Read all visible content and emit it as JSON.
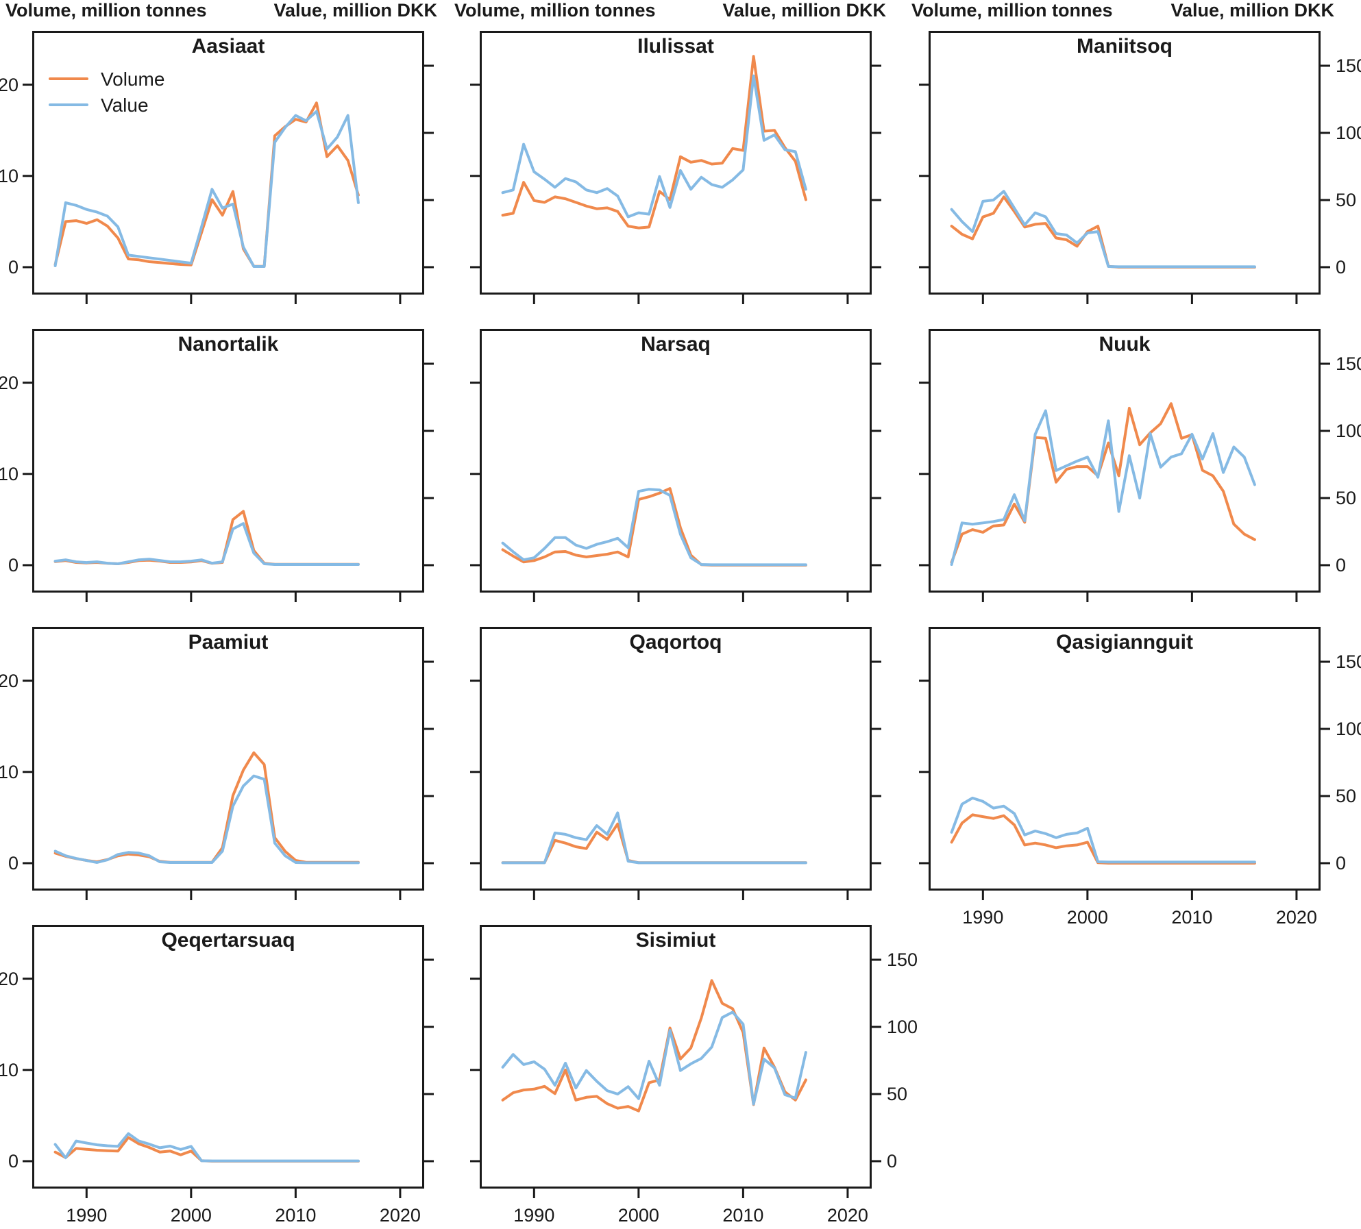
{
  "axis_titles": {
    "volume": "Volume, million tonnes",
    "value": "Value, million DKK"
  },
  "legend": {
    "volume": "Volume",
    "value": "Value"
  },
  "colors": {
    "volume": "#F0894C",
    "value": "#85BAE4",
    "axis": "#1A1A1A"
  },
  "axes": {
    "x_ticks": [
      1990,
      2000,
      2010,
      2020
    ],
    "left_ticks": [
      0,
      10,
      20
    ],
    "right_ticks": [
      0,
      50,
      100,
      150
    ],
    "x_range": [
      1984.8,
      2022.3
    ],
    "left_range": [
      0,
      25.9
    ],
    "right_range": [
      0,
      176
    ],
    "years_start": 1987,
    "years_end": 2016,
    "left_axis_label_columns": "first column only",
    "right_axis_label_panels": "rightmost panel of each row",
    "x_axis_label_panels": "bottom panel of each column"
  },
  "chart_data": {
    "type": "line",
    "x_unit": "year",
    "series_units": {
      "volume": "million tonnes (left axis)",
      "value": "million DKK (right axis)"
    },
    "panels": [
      {
        "title": "Aasiaat",
        "volume": [
          0.3,
          5,
          5.1,
          4.8,
          5.2,
          4.5,
          3.2,
          0.9,
          0.8,
          0.6,
          0.5,
          0.4,
          0.3,
          0.25,
          3.8,
          7.4,
          5.7,
          8.3,
          2,
          0.1,
          0.1,
          14.4,
          15.4,
          16.2,
          15.9,
          18,
          12.1,
          13.3,
          11.7,
          7.9
        ],
        "value": [
          1,
          48,
          46,
          43,
          41,
          38,
          30,
          9,
          8,
          7,
          6,
          5,
          4,
          3,
          30,
          58,
          44,
          47,
          15,
          0.5,
          0.5,
          93,
          104,
          113,
          109,
          116,
          88,
          97,
          113,
          48
        ]
      },
      {
        "title": "Ilulissat",
        "volume": [
          5.7,
          5.9,
          9.3,
          7.3,
          7.1,
          7.7,
          7.5,
          7.1,
          6.7,
          6.4,
          6.5,
          6.1,
          4.5,
          4.3,
          4.4,
          8.3,
          7.4,
          12.1,
          11.5,
          11.7,
          11.3,
          11.4,
          13,
          12.8,
          23.1,
          14.9,
          15,
          13.1,
          11.6,
          7.4
        ],
        "value": [
          55.5,
          57.5,
          91.5,
          71,
          65.5,
          59.5,
          66,
          63.5,
          57.5,
          55.5,
          58.5,
          53,
          37.5,
          40.5,
          39.5,
          67.5,
          44.5,
          72,
          58,
          67,
          61.5,
          59.5,
          65,
          72.5,
          142.5,
          94.5,
          98.5,
          87.5,
          86,
          58
        ]
      },
      {
        "title": "Maniitsoq",
        "volume": [
          4.5,
          3.6,
          3.1,
          5.5,
          5.9,
          7.7,
          6.1,
          4.4,
          4.7,
          4.8,
          3.2,
          3,
          2.3,
          3.9,
          4.5,
          0.1,
          0,
          0,
          0,
          0,
          0,
          0,
          0,
          0,
          0,
          0,
          0,
          0,
          0,
          0
        ],
        "value": [
          43,
          34,
          26.5,
          49,
          50,
          56.5,
          44,
          31.5,
          40.5,
          37.5,
          25,
          24,
          18,
          25.5,
          26.5,
          0.5,
          0.3,
          0.3,
          0.3,
          0.3,
          0.3,
          0.3,
          0.3,
          0.3,
          0.3,
          0.3,
          0.3,
          0.3,
          0.3,
          0.3
        ]
      },
      {
        "title": "Nanortalik",
        "volume": [
          0.4,
          0.5,
          0.3,
          0.25,
          0.3,
          0.2,
          0.15,
          0.3,
          0.5,
          0.55,
          0.45,
          0.3,
          0.3,
          0.35,
          0.5,
          0.2,
          0.3,
          5,
          5.9,
          1.6,
          0.2,
          0.1,
          0.1,
          0.1,
          0.1,
          0.1,
          0.1,
          0.1,
          0.1,
          0.1
        ],
        "value": [
          3,
          4,
          2.5,
          2,
          2.5,
          1.5,
          1,
          2.5,
          4,
          4.5,
          3.5,
          2.5,
          2.5,
          3,
          4,
          1.5,
          2.5,
          27,
          31,
          9,
          1,
          0.5,
          0.5,
          0.5,
          0.5,
          0.5,
          0.5,
          0.5,
          0.5,
          0.5
        ]
      },
      {
        "title": "Narsaq",
        "volume": [
          1.7,
          1,
          0.35,
          0.5,
          0.9,
          1.45,
          1.5,
          1.1,
          0.9,
          1.05,
          1.2,
          1.45,
          0.9,
          7.2,
          7.5,
          7.9,
          8.4,
          4.1,
          1.1,
          0.05,
          0,
          0,
          0,
          0,
          0,
          0,
          0,
          0,
          0,
          0
        ],
        "value": [
          16.5,
          10,
          4,
          5.5,
          12.5,
          20.5,
          20.5,
          15,
          12.5,
          15.5,
          17.5,
          20,
          13,
          55,
          56.5,
          56,
          52,
          23,
          5.5,
          0.5,
          0.3,
          0.3,
          0.3,
          0.3,
          0.3,
          0.3,
          0.3,
          0.3,
          0.3,
          0.3
        ]
      },
      {
        "title": "Nuuk",
        "volume": [
          0.3,
          3.4,
          3.9,
          3.6,
          4.3,
          4.4,
          6.7,
          4.7,
          14,
          13.9,
          9.1,
          10.5,
          10.8,
          10.8,
          9.8,
          13.4,
          9.8,
          17.2,
          13.2,
          14.5,
          15.5,
          17.7,
          13.9,
          14.3,
          10.4,
          9.8,
          8.1,
          4.5,
          3.4,
          2.8
        ],
        "value": [
          0.5,
          31.5,
          30.5,
          31.5,
          32.5,
          34,
          52.5,
          33,
          97.5,
          115,
          70.5,
          74,
          77.5,
          80.5,
          65.5,
          107.5,
          40,
          81.5,
          50,
          98,
          73,
          80.5,
          83,
          97.5,
          79,
          98,
          69,
          88,
          80.5,
          60
        ]
      },
      {
        "title": "Paamiut",
        "volume": [
          1.1,
          0.75,
          0.5,
          0.3,
          0.15,
          0.4,
          0.8,
          1,
          0.9,
          0.7,
          0.2,
          0.1,
          0.1,
          0.1,
          0.1,
          0.1,
          1.7,
          7.4,
          10.2,
          12.1,
          10.8,
          2.8,
          1.3,
          0.3,
          0.1,
          0.1,
          0.1,
          0.1,
          0.1,
          0.1
        ],
        "value": [
          9,
          5.5,
          3.5,
          2,
          0.5,
          2.5,
          6.5,
          8,
          7.5,
          5.5,
          1,
          0.5,
          0.5,
          0.5,
          0.5,
          0.5,
          9,
          42.5,
          57.5,
          65,
          62.5,
          15,
          5.5,
          0.5,
          0.3,
          0.3,
          0.3,
          0.3,
          0.3,
          0.3
        ]
      },
      {
        "title": "Qaqortoq",
        "volume": [
          0.05,
          0.05,
          0.05,
          0.05,
          0.05,
          2.5,
          2.2,
          1.8,
          1.6,
          3.4,
          2.6,
          4.3,
          0.3,
          0.05,
          0.05,
          0.05,
          0.05,
          0.05,
          0.05,
          0.05,
          0.05,
          0.05,
          0.05,
          0.05,
          0.05,
          0.05,
          0.05,
          0.05,
          0.05,
          0.05
        ],
        "value": [
          0.3,
          0.3,
          0.3,
          0.3,
          0.3,
          22.5,
          21.5,
          19,
          17.5,
          28,
          21.5,
          37.5,
          1.5,
          0.3,
          0.3,
          0.3,
          0.3,
          0.3,
          0.3,
          0.3,
          0.3,
          0.3,
          0.3,
          0.3,
          0.3,
          0.3,
          0.3,
          0.3,
          0.3,
          0.3
        ]
      },
      {
        "title": "Qasigiannguit",
        "volume": [
          2.3,
          4.4,
          5.3,
          5.1,
          4.9,
          5.2,
          4.2,
          2,
          2.2,
          2,
          1.7,
          1.9,
          2,
          2.3,
          0.05,
          0,
          0,
          0,
          0,
          0,
          0,
          0,
          0,
          0,
          0,
          0,
          0,
          0,
          0,
          0
        ],
        "value": [
          23,
          44,
          48.5,
          46,
          41,
          42.5,
          37,
          21,
          24,
          22,
          19,
          21.5,
          22.5,
          26,
          1,
          0.8,
          0.8,
          0.8,
          0.8,
          0.8,
          0.8,
          0.8,
          0.8,
          0.8,
          0.8,
          0.8,
          0.8,
          0.8,
          0.8,
          0.8
        ]
      },
      {
        "title": "Qeqertarsuaq",
        "volume": [
          1,
          0.4,
          1.4,
          1.3,
          1.2,
          1.15,
          1.1,
          2.6,
          1.9,
          1.5,
          1,
          1.1,
          0.7,
          1.1,
          0.05,
          0,
          0,
          0,
          0,
          0,
          0,
          0,
          0,
          0,
          0,
          0,
          0,
          0,
          0,
          0
        ],
        "value": [
          12.5,
          2.5,
          15,
          13.5,
          12.2,
          11.5,
          11,
          20.5,
          15,
          12.7,
          10,
          11.2,
          8.7,
          11,
          0.3,
          0.2,
          0.2,
          0.2,
          0.2,
          0.2,
          0.2,
          0.2,
          0.2,
          0.2,
          0.2,
          0.2,
          0.2,
          0.2,
          0.2,
          0.2
        ]
      },
      {
        "title": "Sisimiut",
        "volume": [
          6.7,
          7.5,
          7.8,
          7.9,
          8.2,
          7.4,
          10,
          6.7,
          7,
          7.1,
          6.3,
          5.8,
          6,
          5.5,
          8.6,
          8.9,
          14.6,
          11.2,
          12.4,
          15.7,
          19.8,
          17.3,
          16.7,
          14.1,
          6.2,
          12.4,
          10.3,
          7.6,
          6.7,
          8.9
        ],
        "value": [
          70,
          79.5,
          72,
          74,
          68.5,
          56.5,
          73,
          54.5,
          67.5,
          59.5,
          52.5,
          50,
          55.5,
          46.5,
          74.5,
          56.5,
          97.5,
          67.5,
          72.5,
          76.5,
          85,
          107,
          111,
          102,
          42.5,
          76,
          69.5,
          49.5,
          47,
          81
        ]
      }
    ]
  }
}
